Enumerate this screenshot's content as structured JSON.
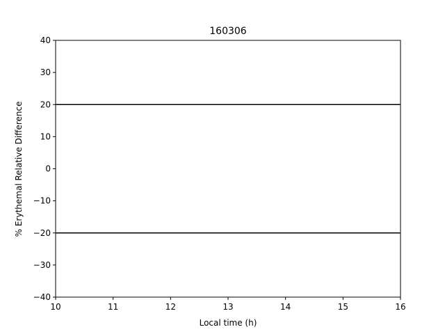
{
  "chart_data": {
    "type": "line",
    "title": "160306",
    "xlabel": "Local time (h)",
    "ylabel": "% Erythemal Relative Difference",
    "xlim": [
      10,
      16
    ],
    "ylim": [
      -40,
      40
    ],
    "x_ticks": [
      10,
      11,
      12,
      13,
      14,
      15,
      16
    ],
    "y_ticks": [
      40,
      30,
      20,
      10,
      0,
      -10,
      -20,
      -30,
      -40
    ],
    "x_tick_labels": [
      "10",
      "11",
      "12",
      "13",
      "14",
      "15",
      "16"
    ],
    "y_tick_labels": [
      "40",
      "30",
      "20",
      "10",
      "0",
      "−10",
      "−20",
      "−30",
      "−40"
    ],
    "grid": false,
    "series": [],
    "reference_lines": [
      {
        "y": 20,
        "color": "#000000"
      },
      {
        "y": -20,
        "color": "#000000"
      }
    ]
  }
}
